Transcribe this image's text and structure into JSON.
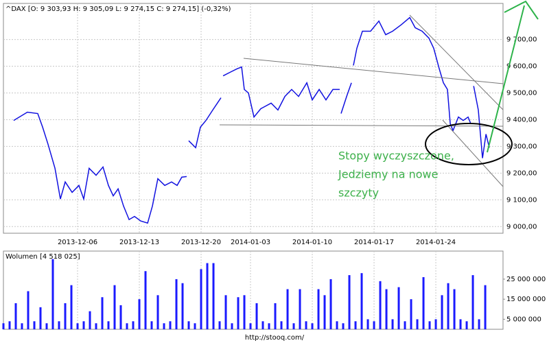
{
  "chart_data": [
    {
      "type": "line",
      "title": "^DAX [O: 9 303,93  H: 9 305,09  L: 9 274,15  C: 9 274,15] (-0,32%)",
      "annotations": [
        "Stopy wyczyszczone,",
        "Jedziemy na nowe",
        "szczyty"
      ],
      "color": "#1010e0",
      "grid": true,
      "xlim": [
        0,
        40.44
      ],
      "xticks": [
        {
          "value": 6,
          "label": "2013-12-06"
        },
        {
          "value": 11,
          "label": "2013-12-13"
        },
        {
          "value": 16,
          "label": "2013-12-20"
        },
        {
          "value": 20,
          "label": "2014-01-03"
        },
        {
          "value": 25,
          "label": "2014-01-10"
        },
        {
          "value": 30,
          "label": "2014-01-17"
        },
        {
          "value": 35,
          "label": "2014-01-24"
        }
      ],
      "ylim": [
        8975,
        9835
      ],
      "yticks": [
        {
          "value": 9000,
          "label": "9 000,00"
        },
        {
          "value": 9100,
          "label": "9 100,00"
        },
        {
          "value": 9200,
          "label": "9 200,00"
        },
        {
          "value": 9300,
          "label": "9 300,00"
        },
        {
          "value": 9400,
          "label": "9 400,00"
        },
        {
          "value": 9500,
          "label": "9 500,00"
        },
        {
          "value": 9600,
          "label": "9 600,00"
        },
        {
          "value": 9700,
          "label": "9 700,00"
        }
      ],
      "x": [
        0.83,
        1.94,
        2.78,
        3.17,
        3.61,
        4.17,
        4.61,
        5.0,
        5.56,
        6.11,
        6.5,
        6.94,
        7.5,
        8.06,
        8.5,
        8.89,
        9.28,
        9.72,
        10.17,
        10.61,
        11.11,
        11.67,
        12.06,
        12.5,
        13.06,
        13.61,
        14.06,
        14.44,
        14.83,
        null,
        15.0,
        15.56,
        15.94,
        16.39,
        16.94,
        17.39,
        17.61,
        null,
        17.78,
        18.33,
        18.89,
        19.28,
        19.5,
        19.83,
        20.28,
        20.83,
        21.67,
        22.22,
        22.78,
        23.33,
        23.89,
        24.56,
        25.0,
        25.56,
        26.11,
        26.67,
        27.22,
        null,
        27.33,
        27.78,
        28.17,
        null,
        28.33,
        28.61,
        29.06,
        29.72,
        30.39,
        30.94,
        31.5,
        32.22,
        32.89,
        33.33,
        33.89,
        34.44,
        34.83,
        35.28,
        35.61,
        35.94,
        36.17,
        36.39,
        36.83,
        37.22,
        37.61,
        37.83,
        null,
        38.06,
        38.44,
        38.78,
        39.06,
        39.33
      ],
      "values": [
        9397,
        9428,
        9423,
        9372,
        9308,
        9218,
        9103,
        9167,
        9128,
        9154,
        9103,
        9218,
        9192,
        9223,
        9154,
        9115,
        9141,
        9077,
        9026,
        9038,
        9021,
        9013,
        9077,
        9179,
        9154,
        9167,
        9154,
        9185,
        9187,
        null,
        9321,
        9295,
        9372,
        9397,
        9436,
        9467,
        9482,
        null,
        9564,
        9577,
        9590,
        9597,
        9513,
        9500,
        9410,
        9441,
        9462,
        9436,
        9487,
        9513,
        9487,
        9538,
        9474,
        9513,
        9474,
        9513,
        9513,
        null,
        9423,
        9487,
        9538,
        null,
        9603,
        9667,
        9731,
        9731,
        9769,
        9718,
        9731,
        9756,
        9782,
        9744,
        9731,
        9705,
        9667,
        9590,
        9538,
        9513,
        9385,
        9359,
        9410,
        9397,
        9410,
        9385,
        null,
        9526,
        9436,
        9256,
        9346,
        9295
      ]
    },
    {
      "type": "bar",
      "title": "Wolumen [4 518 025]",
      "color": "#1a1aff",
      "xlim": [
        0,
        40.44
      ],
      "ylim": [
        0,
        39000000
      ],
      "yticks": [
        {
          "value": 5000000,
          "label": "5 000 000"
        },
        {
          "value": 15000000,
          "label": "15 000 000"
        },
        {
          "value": 25000000,
          "label": "25 000 000"
        }
      ],
      "x": [
        0,
        0.5,
        1,
        1.5,
        2,
        2.5,
        3,
        3.5,
        4,
        4.5,
        5,
        5.5,
        6,
        6.5,
        7,
        7.5,
        8,
        8.5,
        9,
        9.5,
        10,
        10.5,
        11,
        11.5,
        12,
        12.5,
        13,
        13.5,
        14,
        14.5,
        15,
        15.5,
        16,
        16.5,
        17,
        17.5,
        18,
        18.5,
        19,
        19.5,
        20,
        20.5,
        21,
        21.5,
        22,
        22.5,
        23,
        23.5,
        24,
        24.5,
        25,
        25.5,
        26,
        26.5,
        27,
        27.5,
        28,
        28.5,
        29,
        29.5,
        30,
        30.5,
        31,
        31.5,
        32,
        32.5,
        33,
        33.5,
        34,
        34.5,
        35,
        35.5,
        36,
        36.5,
        37,
        37.5,
        38,
        38.5,
        39
      ],
      "values": [
        3000000,
        4000000,
        13000000,
        3000000,
        19000000,
        4000000,
        11000000,
        3000000,
        35000000,
        4000000,
        13000000,
        22000000,
        3000000,
        4000000,
        9000000,
        3000000,
        16000000,
        4000000,
        22000000,
        12000000,
        3000000,
        4000000,
        15000000,
        29000000,
        4000000,
        17000000,
        3000000,
        4000000,
        25000000,
        23000000,
        4000000,
        3000000,
        30000000,
        33000000,
        33000000,
        4000000,
        17000000,
        3000000,
        16000000,
        17000000,
        3000000,
        13000000,
        4000000,
        3000000,
        13000000,
        4000000,
        20000000,
        3000000,
        20000000,
        4000000,
        3000000,
        20000000,
        17000000,
        25000000,
        4000000,
        3000000,
        27000000,
        4000000,
        28000000,
        5000000,
        4000000,
        24000000,
        20000000,
        5000000,
        21000000,
        4000000,
        15000000,
        5000000,
        26000000,
        4000000,
        5000000,
        17000000,
        23000000,
        20000000,
        5000000,
        4000000,
        27000000,
        5000000,
        22000000
      ]
    }
  ],
  "footer": "http://stooq.com/"
}
